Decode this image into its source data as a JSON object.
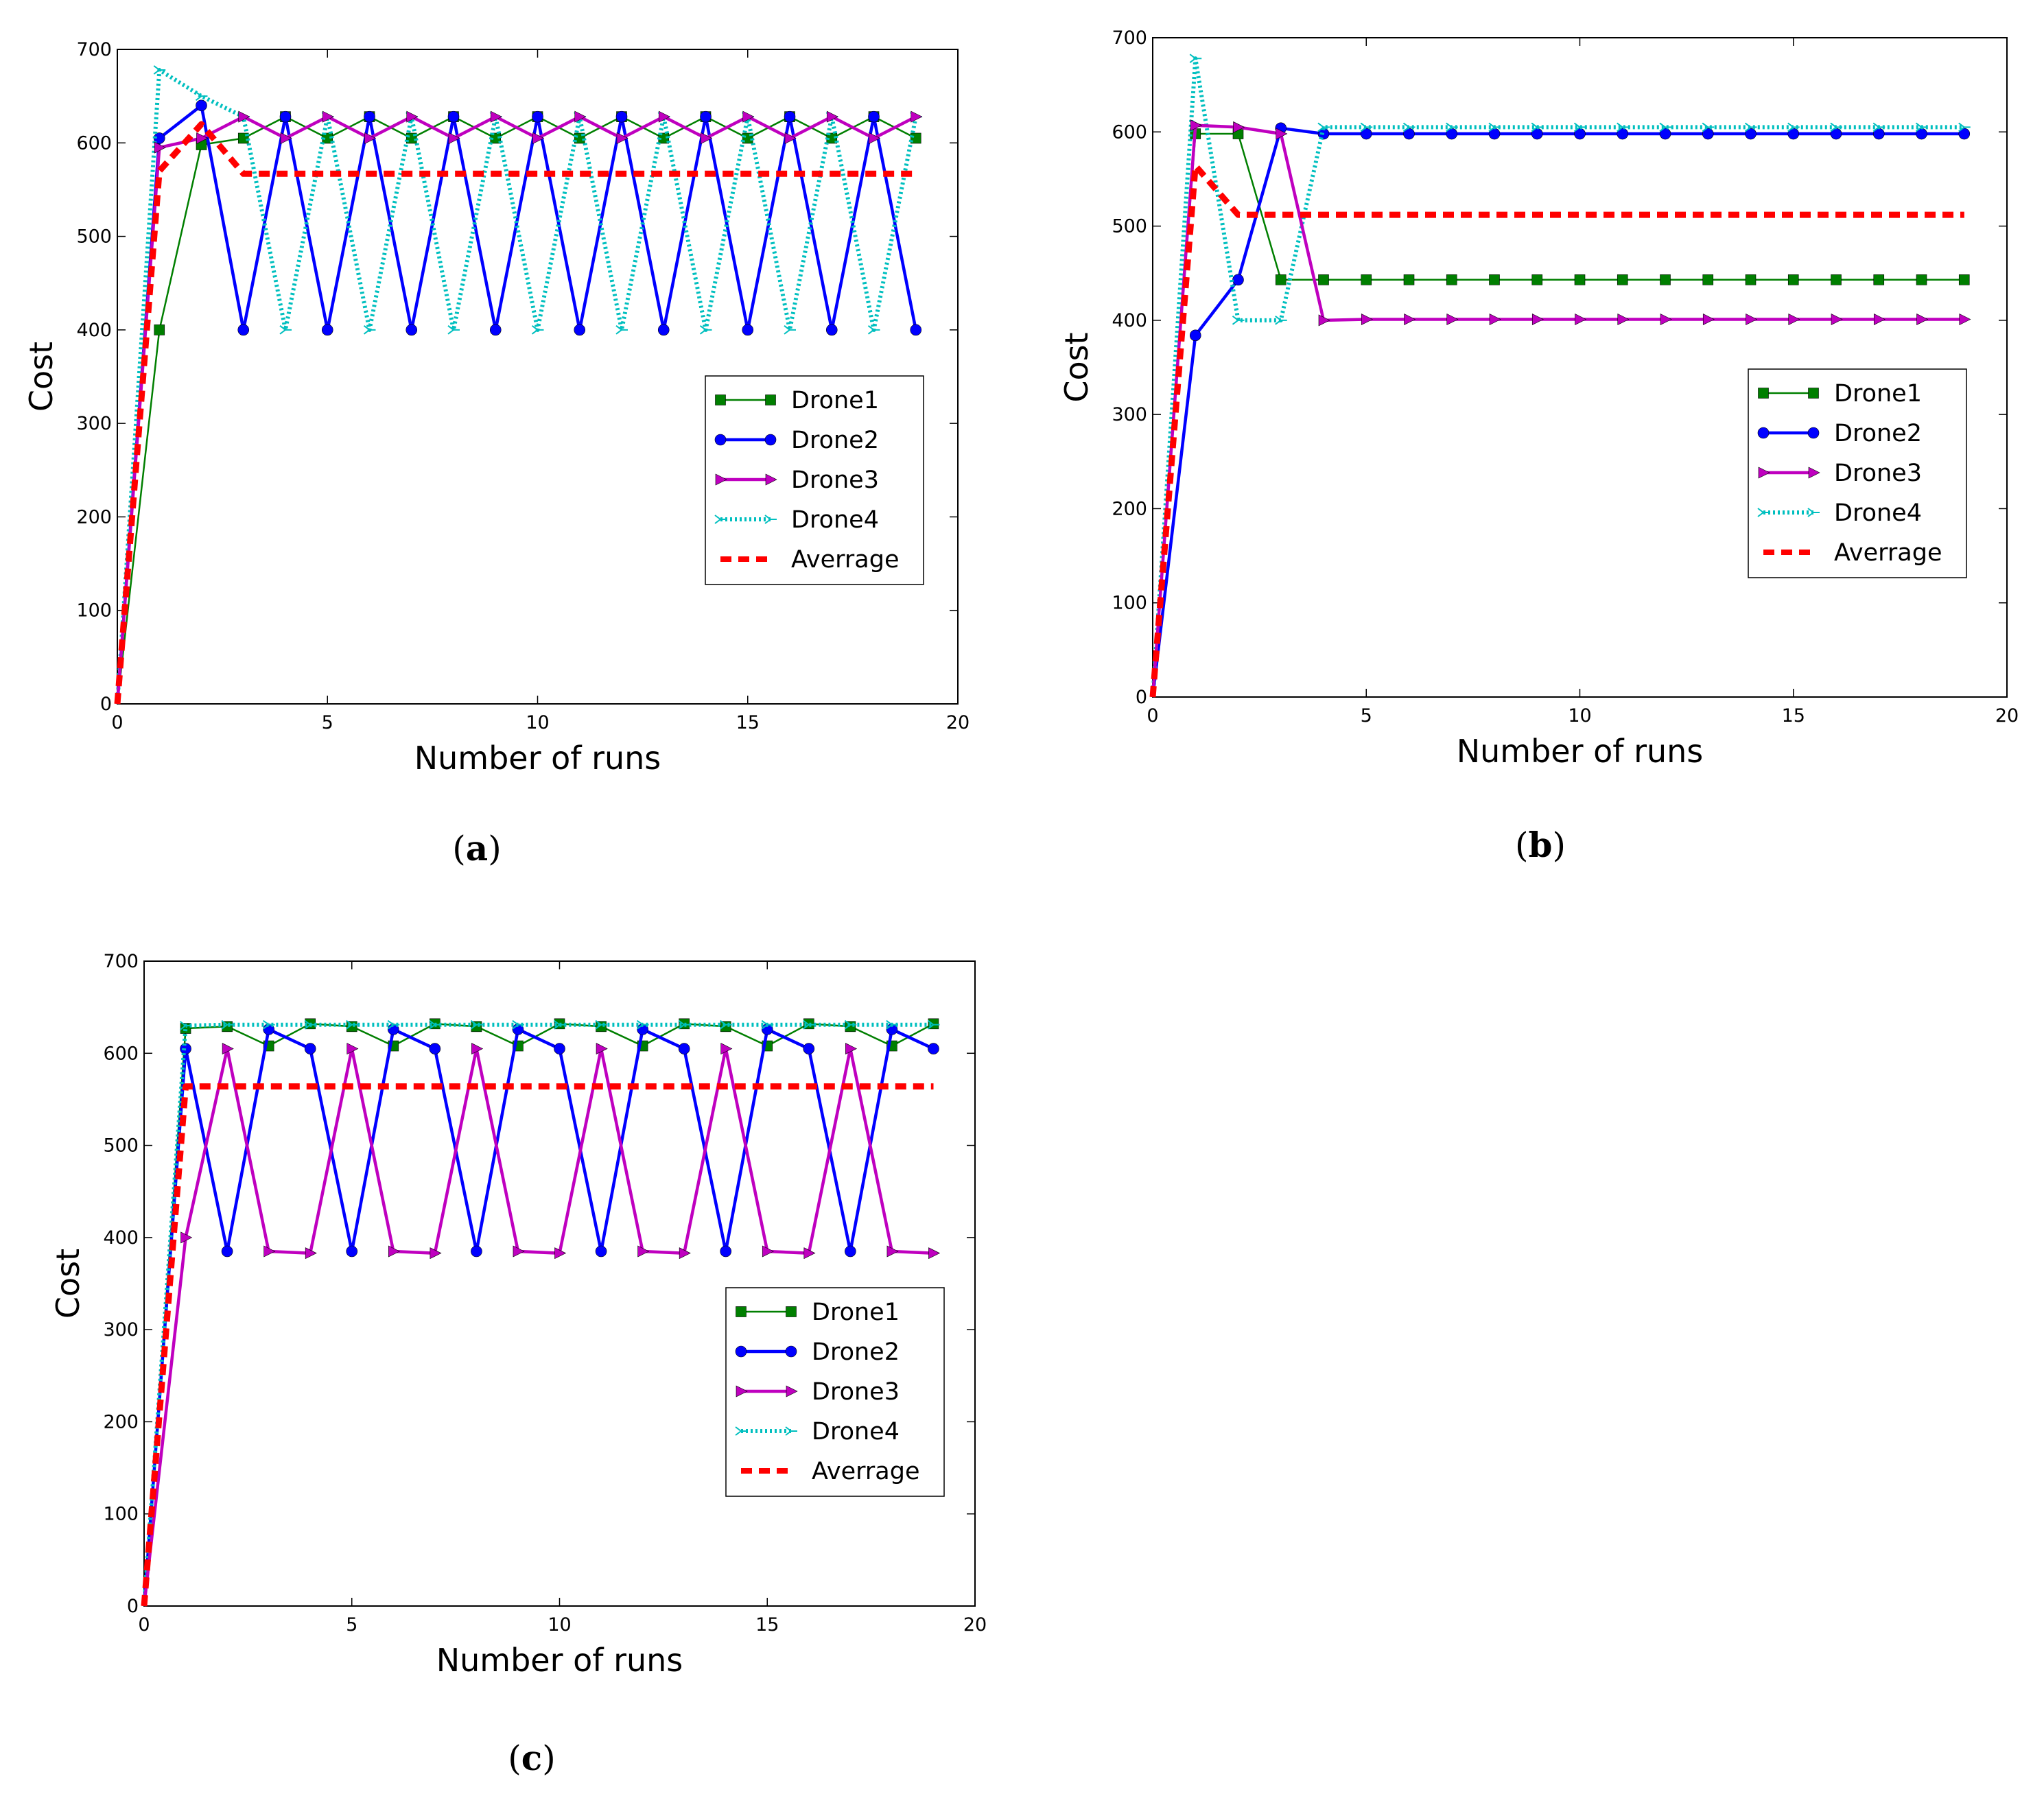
{
  "chart_data": [
    {
      "type": "line",
      "caption": "(a)",
      "caption_letter": "a",
      "xlabel": "Number of runs",
      "ylabel": "Cost",
      "xlim": [
        0,
        20
      ],
      "ylim": [
        0,
        700
      ],
      "xticks": [
        0,
        5,
        10,
        15,
        20
      ],
      "yticks": [
        0,
        100,
        200,
        300,
        400,
        500,
        600,
        700
      ],
      "legend_position": "center-right",
      "x": [
        0,
        1,
        2,
        3,
        4,
        5,
        6,
        7,
        8,
        9,
        10,
        11,
        12,
        13,
        14,
        15,
        16,
        17,
        18,
        19
      ],
      "series": [
        {
          "name": "Drone1",
          "color": "#007f00",
          "marker": "square",
          "style": "solid",
          "values": [
            0,
            400,
            598,
            605,
            628,
            605,
            628,
            605,
            628,
            605,
            628,
            605,
            628,
            605,
            628,
            605,
            628,
            605,
            628,
            605
          ]
        },
        {
          "name": "Drone2",
          "color": "#0000ff",
          "marker": "circle",
          "style": "solid",
          "values": [
            0,
            605,
            640,
            400,
            628,
            400,
            628,
            400,
            628,
            400,
            628,
            400,
            628,
            400,
            628,
            400,
            628,
            400,
            628,
            400
          ]
        },
        {
          "name": "Drone3",
          "color": "#bf00bf",
          "marker": "triangle-right",
          "style": "solid",
          "values": [
            0,
            595,
            605,
            628,
            605,
            628,
            605,
            628,
            605,
            628,
            605,
            628,
            605,
            628,
            605,
            628,
            605,
            628,
            605,
            628
          ]
        },
        {
          "name": "Drone4",
          "color": "#00bfbf",
          "marker": "tri",
          "style": "dotted",
          "values": [
            0,
            678,
            650,
            628,
            400,
            628,
            400,
            628,
            400,
            628,
            400,
            628,
            400,
            628,
            400,
            628,
            400,
            628,
            400,
            628
          ]
        },
        {
          "name": "Averrage",
          "color": "#ff0000",
          "marker": "none",
          "style": "dashed",
          "values": [
            0,
            570,
            620,
            567,
            567,
            567,
            567,
            567,
            567,
            567,
            567,
            567,
            567,
            567,
            567,
            567,
            567,
            567,
            567,
            567
          ]
        }
      ]
    },
    {
      "type": "line",
      "caption": "(b)",
      "caption_letter": "b",
      "xlabel": "Number of runs",
      "ylabel": "Cost",
      "xlim": [
        0,
        20
      ],
      "ylim": [
        0,
        700
      ],
      "xticks": [
        0,
        5,
        10,
        15,
        20
      ],
      "yticks": [
        0,
        100,
        200,
        300,
        400,
        500,
        600,
        700
      ],
      "legend_position": "center-right",
      "x": [
        0,
        1,
        2,
        3,
        4,
        5,
        6,
        7,
        8,
        9,
        10,
        11,
        12,
        13,
        14,
        15,
        16,
        17,
        18,
        19
      ],
      "series": [
        {
          "name": "Drone1",
          "color": "#007f00",
          "marker": "square",
          "style": "solid",
          "values": [
            0,
            598,
            598,
            443,
            443,
            443,
            443,
            443,
            443,
            443,
            443,
            443,
            443,
            443,
            443,
            443,
            443,
            443,
            443,
            443
          ]
        },
        {
          "name": "Drone2",
          "color": "#0000ff",
          "marker": "circle",
          "style": "solid",
          "values": [
            0,
            384,
            443,
            604,
            598,
            598,
            598,
            598,
            598,
            598,
            598,
            598,
            598,
            598,
            598,
            598,
            598,
            598,
            598,
            598
          ]
        },
        {
          "name": "Drone3",
          "color": "#bf00bf",
          "marker": "triangle-right",
          "style": "solid",
          "values": [
            0,
            607,
            605,
            598,
            400,
            401,
            401,
            401,
            401,
            401,
            401,
            401,
            401,
            401,
            401,
            401,
            401,
            401,
            401,
            401
          ]
        },
        {
          "name": "Drone4",
          "color": "#00bfbf",
          "marker": "tri",
          "style": "dotted",
          "values": [
            0,
            678,
            400,
            400,
            605,
            605,
            605,
            605,
            605,
            605,
            605,
            605,
            605,
            605,
            605,
            605,
            605,
            605,
            605,
            605
          ]
        },
        {
          "name": "Averrage",
          "color": "#ff0000",
          "marker": "none",
          "style": "dashed",
          "values": [
            0,
            564,
            512,
            512,
            512,
            512,
            512,
            512,
            512,
            512,
            512,
            512,
            512,
            512,
            512,
            512,
            512,
            512,
            512,
            512
          ]
        }
      ]
    },
    {
      "type": "line",
      "caption": "(c)",
      "caption_letter": "c",
      "xlabel": "Number of runs",
      "ylabel": "Cost",
      "xlim": [
        0,
        20
      ],
      "ylim": [
        0,
        700
      ],
      "xticks": [
        0,
        5,
        10,
        15,
        20
      ],
      "yticks": [
        0,
        100,
        200,
        300,
        400,
        500,
        600,
        700
      ],
      "legend_position": "center-right",
      "x": [
        0,
        1,
        2,
        3,
        4,
        5,
        6,
        7,
        8,
        9,
        10,
        11,
        12,
        13,
        14,
        15,
        16,
        17,
        18,
        19
      ],
      "series": [
        {
          "name": "Drone1",
          "color": "#007f00",
          "marker": "square",
          "style": "solid",
          "values": [
            0,
            627,
            629,
            608,
            632,
            629,
            608,
            632,
            629,
            608,
            632,
            629,
            608,
            632,
            629,
            608,
            632,
            629,
            608,
            632
          ]
        },
        {
          "name": "Drone2",
          "color": "#0000ff",
          "marker": "circle",
          "style": "solid",
          "values": [
            0,
            605,
            385,
            626,
            605,
            385,
            626,
            605,
            385,
            626,
            605,
            385,
            626,
            605,
            385,
            626,
            605,
            385,
            626,
            605
          ]
        },
        {
          "name": "Drone3",
          "color": "#bf00bf",
          "marker": "triangle-right",
          "style": "solid",
          "values": [
            0,
            400,
            605,
            385,
            383,
            605,
            385,
            383,
            605,
            385,
            383,
            605,
            385,
            383,
            605,
            385,
            383,
            605,
            385,
            383
          ]
        },
        {
          "name": "Drone4",
          "color": "#00bfbf",
          "marker": "tri",
          "style": "dotted",
          "values": [
            0,
            630,
            631,
            631,
            631,
            631,
            631,
            631,
            631,
            631,
            631,
            631,
            631,
            631,
            631,
            631,
            631,
            631,
            631,
            631
          ]
        },
        {
          "name": "Averrage",
          "color": "#ff0000",
          "marker": "none",
          "style": "dashed",
          "values": [
            0,
            564,
            564,
            564,
            564,
            564,
            564,
            564,
            564,
            564,
            564,
            564,
            564,
            564,
            564,
            564,
            564,
            564,
            564,
            564
          ]
        }
      ]
    }
  ]
}
